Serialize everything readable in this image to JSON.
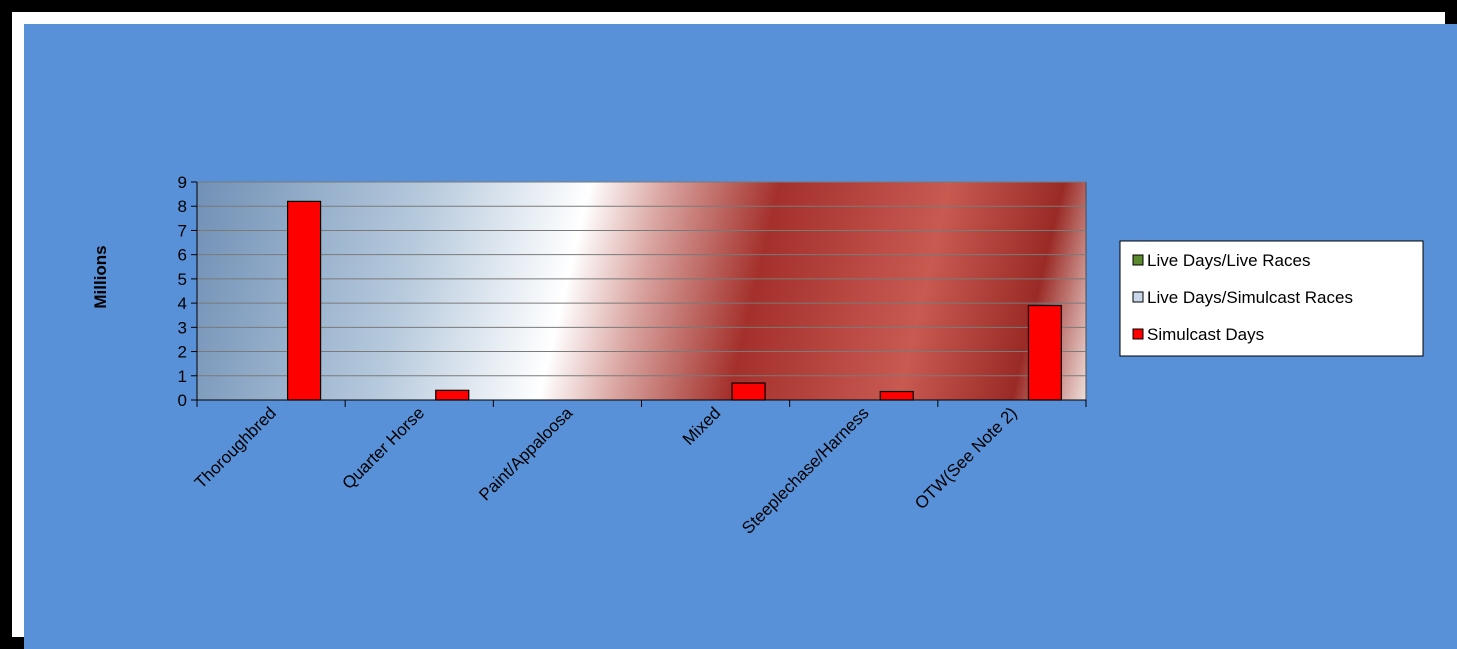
{
  "chart_data": {
    "type": "bar",
    "ylabel": "Millions",
    "ylim": [
      0,
      9
    ],
    "yticks": [
      "0",
      "1",
      "2",
      "3",
      "4",
      "5",
      "6",
      "7",
      "8",
      "9"
    ],
    "categories": [
      "Thoroughbred",
      "Quarter Horse",
      "Paint/Appaloosa",
      "Mixed",
      "Steeplechase/Harness",
      "OTW(See Note 2)"
    ],
    "series": [
      {
        "name": "Live Days/Live Races",
        "color": "#5a8a2c",
        "values": [
          0,
          0,
          0,
          0,
          0,
          0
        ]
      },
      {
        "name": "Live Days/Simulcast Races",
        "color": "#c9d7ea",
        "values": [
          0,
          0,
          0,
          0,
          0,
          0
        ]
      },
      {
        "name": "Simulcast Days",
        "color": "#ff0000",
        "values": [
          8.2,
          0.4,
          0,
          0.7,
          0.35,
          3.9
        ]
      }
    ],
    "legend_position": "right",
    "grid": true,
    "background_color": "#5891d8"
  }
}
